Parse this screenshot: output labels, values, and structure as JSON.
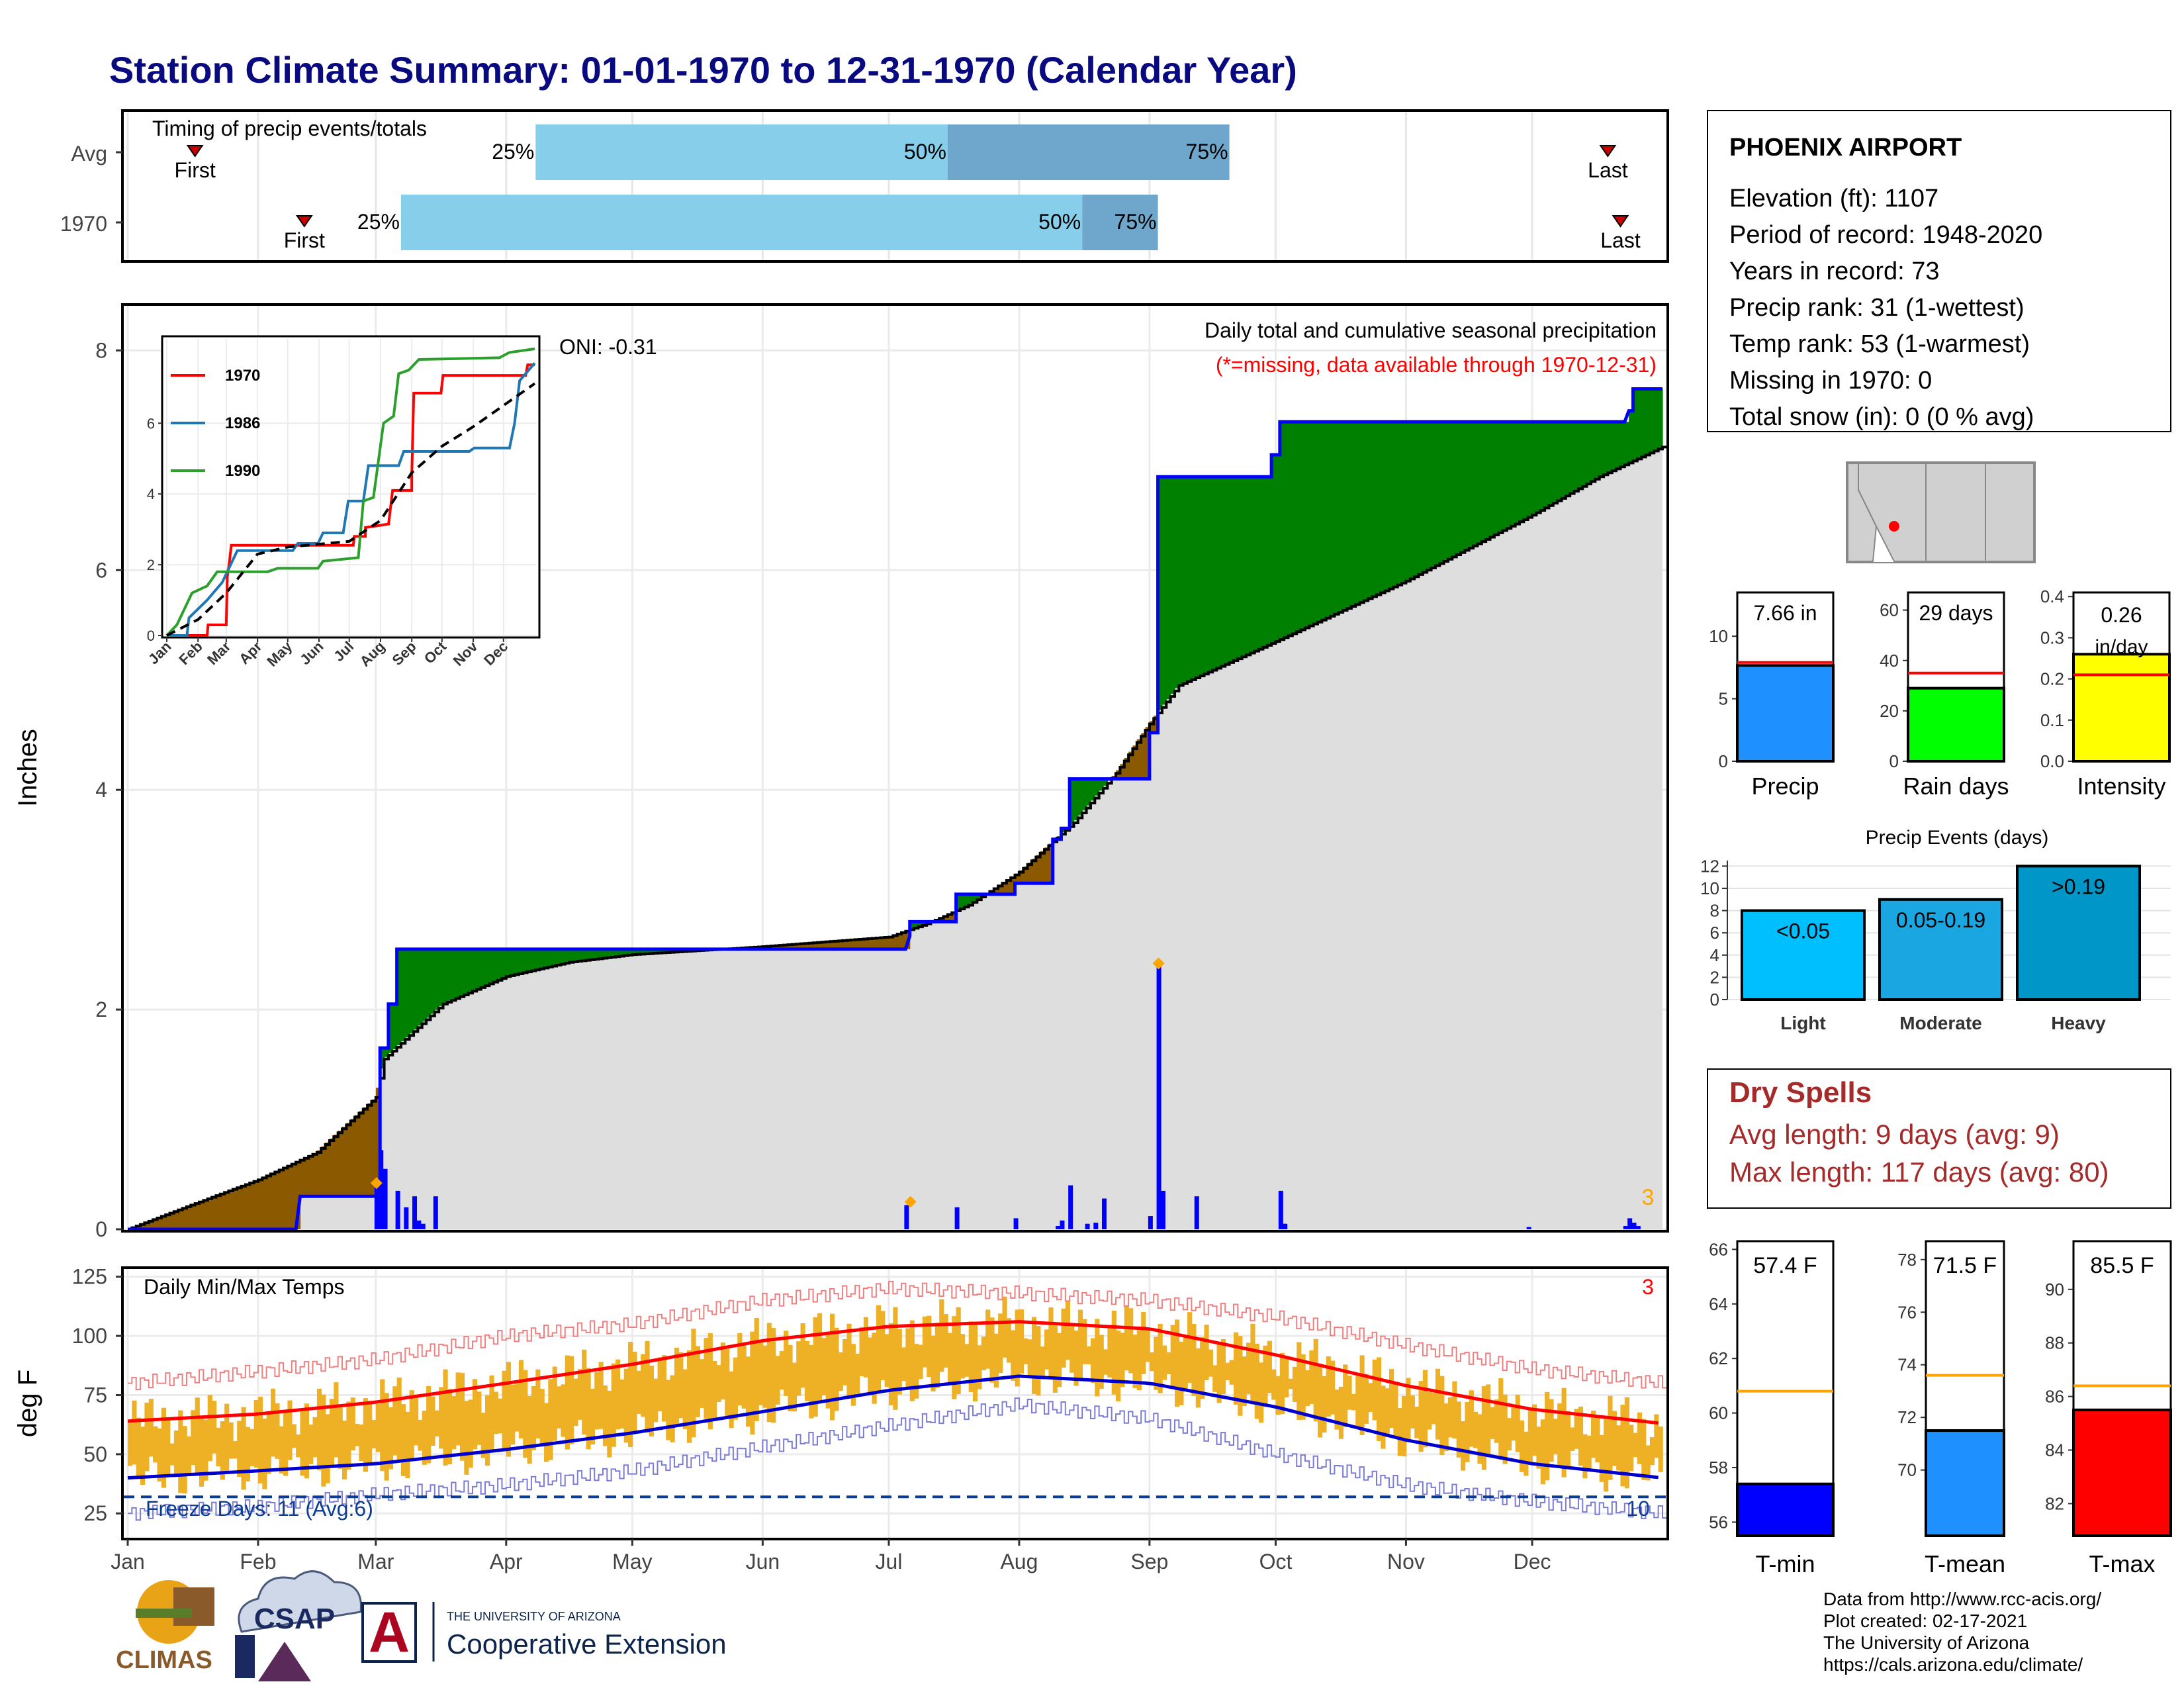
{
  "title": "Station Climate Summary: 01-01-1970 to 12-31-1970 (Calendar Year)",
  "months": [
    "Jan",
    "Feb",
    "Mar",
    "Apr",
    "May",
    "Jun",
    "Jul",
    "Aug",
    "Sep",
    "Oct",
    "Nov",
    "Dec"
  ],
  "colors": {
    "title": "#0a0a80",
    "quartile_light": "#87ceeb",
    "quartile_dark": "#6fa6cc",
    "surplus": "#008000",
    "deficit": "#8b5a00",
    "normal_fill": "#dedede",
    "cumulative_line": "#0000ff",
    "daily_bar": "#0000ff",
    "marker": "#ffa500",
    "temp_band": "#eeb024",
    "tmax_avg": "#ff0000",
    "tmin_avg": "#0000cc",
    "dry_spell": "#a52a2a",
    "oni": "#000000"
  },
  "timing_panel": {
    "label": "Timing of precip events/totals",
    "rows": [
      {
        "name": "Avg",
        "first": 16,
        "q25": 97,
        "q50": 195,
        "q75": 262,
        "last": 352,
        "first_label": "First",
        "last_label": "Last",
        "q25_label": "25%",
        "q50_label": "50%",
        "q75_label": "75%"
      },
      {
        "name": "1970",
        "first": 42,
        "q25": 65,
        "q50": 227,
        "q75": 245,
        "last": 355,
        "first_label": "First",
        "last_label": "Last",
        "q25_label": "25%",
        "q50_label": "50%",
        "q75_label": "75%"
      }
    ]
  },
  "precip_panel": {
    "ylabel": "Inches",
    "ylim": [
      0,
      8.4
    ],
    "yticks": [
      0,
      2,
      4,
      6,
      8
    ],
    "legend_title": "Daily total and cumulative seasonal precipitation",
    "missing_note": "(*=missing, data available through 1970-12-31)",
    "oni_label": "ONI: -0.31",
    "corner_count": "3",
    "chart_data": {
      "type": "area",
      "x_unit": "day of year",
      "cumulative_1970": [
        [
          0,
          0
        ],
        [
          40,
          0
        ],
        [
          41,
          0.3
        ],
        [
          59,
          0.3
        ],
        [
          60,
          0.42
        ],
        [
          60,
          1.65
        ],
        [
          62,
          1.65
        ],
        [
          62,
          2.05
        ],
        [
          64,
          2.05
        ],
        [
          64,
          2.55
        ],
        [
          185,
          2.55
        ],
        [
          186,
          2.67
        ],
        [
          186,
          2.8
        ],
        [
          197,
          2.8
        ],
        [
          197,
          3.05
        ],
        [
          211,
          3.05
        ],
        [
          211,
          3.15
        ],
        [
          220,
          3.15
        ],
        [
          220,
          3.55
        ],
        [
          222,
          3.55
        ],
        [
          222,
          3.65
        ],
        [
          224,
          3.65
        ],
        [
          224,
          4.1
        ],
        [
          243,
          4.1
        ],
        [
          243,
          4.52
        ],
        [
          245,
          4.52
        ],
        [
          245,
          6.85
        ],
        [
          272,
          6.85
        ],
        [
          272,
          7.05
        ],
        [
          274,
          7.05
        ],
        [
          274,
          7.35
        ],
        [
          356,
          7.35
        ],
        [
          357,
          7.45
        ],
        [
          358,
          7.45
        ],
        [
          358,
          7.65
        ],
        [
          365,
          7.65
        ]
      ],
      "cumulative_normal": [
        [
          0,
          0
        ],
        [
          15,
          0.22
        ],
        [
          31,
          0.45
        ],
        [
          45,
          0.7
        ],
        [
          59,
          1.2
        ],
        [
          61,
          1.55
        ],
        [
          75,
          2.05
        ],
        [
          90,
          2.3
        ],
        [
          105,
          2.43
        ],
        [
          120,
          2.5
        ],
        [
          150,
          2.57
        ],
        [
          181,
          2.66
        ],
        [
          190,
          2.78
        ],
        [
          200,
          2.95
        ],
        [
          212,
          3.25
        ],
        [
          225,
          3.7
        ],
        [
          235,
          4.15
        ],
        [
          243,
          4.6
        ],
        [
          250,
          4.95
        ],
        [
          273,
          5.35
        ],
        [
          304,
          5.9
        ],
        [
          334,
          6.5
        ],
        [
          350,
          6.85
        ],
        [
          365,
          7.12
        ]
      ],
      "daily": [
        [
          59,
          0.42
        ],
        [
          60,
          0.72
        ],
        [
          61,
          0.55
        ],
        [
          64,
          0.35
        ],
        [
          66,
          0.2
        ],
        [
          68,
          0.3
        ],
        [
          69,
          0.08
        ],
        [
          70,
          0.05
        ],
        [
          73,
          0.3
        ],
        [
          185,
          0.22
        ],
        [
          197,
          0.2
        ],
        [
          211,
          0.1
        ],
        [
          221,
          0.03
        ],
        [
          222,
          0.08
        ],
        [
          224,
          0.4
        ],
        [
          228,
          0.05
        ],
        [
          230,
          0.06
        ],
        [
          232,
          0.28
        ],
        [
          243,
          0.12
        ],
        [
          245,
          2.45
        ],
        [
          246,
          0.35
        ],
        [
          254,
          0.3
        ],
        [
          274,
          0.35
        ],
        [
          275,
          0.05
        ],
        [
          333,
          0.02
        ],
        [
          356,
          0.03
        ],
        [
          357,
          0.1
        ],
        [
          358,
          0.06
        ],
        [
          359,
          0.03
        ]
      ],
      "markers": [
        [
          59,
          0.42
        ],
        [
          186,
          0.25
        ],
        [
          245,
          2.42
        ]
      ]
    }
  },
  "inset": {
    "legend": [
      {
        "name": "1970",
        "color": "#ff0000"
      },
      {
        "name": "1986",
        "color": "#1f77b4"
      },
      {
        "name": "1990",
        "color": "#2ca02c"
      }
    ],
    "ylim": [
      0,
      8.4
    ],
    "yticks": [
      0,
      2,
      4,
      6
    ],
    "xticks": [
      "Jan",
      "Feb",
      "Mar",
      "Apr",
      "May",
      "Jun",
      "Jul",
      "Aug",
      "Sep",
      "Oct",
      "Nov",
      "Dec"
    ],
    "chart_data": {
      "type": "line",
      "series": [
        {
          "name": "1970",
          "color": "#ff0000",
          "points": [
            [
              0,
              0
            ],
            [
              40,
              0
            ],
            [
              41,
              0.3
            ],
            [
              59,
              0.3
            ],
            [
              60,
              1.65
            ],
            [
              62,
              2.05
            ],
            [
              64,
              2.55
            ],
            [
              185,
              2.55
            ],
            [
              186,
              2.8
            ],
            [
              197,
              2.8
            ],
            [
              197,
              3.05
            ],
            [
              220,
              3.15
            ],
            [
              224,
              4.1
            ],
            [
              243,
              4.1
            ],
            [
              243,
              4.52
            ],
            [
              245,
              6.85
            ],
            [
              272,
              6.85
            ],
            [
              274,
              7.35
            ],
            [
              356,
              7.35
            ],
            [
              358,
              7.65
            ],
            [
              365,
              7.65
            ]
          ]
        },
        {
          "name": "1986",
          "color": "#1f77b4",
          "points": [
            [
              0,
              0
            ],
            [
              20,
              0
            ],
            [
              22,
              0.5
            ],
            [
              40,
              1.0
            ],
            [
              55,
              1.5
            ],
            [
              70,
              2.4
            ],
            [
              125,
              2.4
            ],
            [
              130,
              2.6
            ],
            [
              150,
              2.6
            ],
            [
              155,
              2.9
            ],
            [
              175,
              2.9
            ],
            [
              180,
              3.8
            ],
            [
              195,
              3.8
            ],
            [
              200,
              4.8
            ],
            [
              230,
              4.8
            ],
            [
              235,
              5.2
            ],
            [
              300,
              5.2
            ],
            [
              305,
              5.3
            ],
            [
              340,
              5.3
            ],
            [
              345,
              6.0
            ],
            [
              350,
              7.2
            ],
            [
              365,
              7.7
            ]
          ]
        },
        {
          "name": "1990",
          "color": "#2ca02c",
          "points": [
            [
              0,
              0
            ],
            [
              10,
              0.3
            ],
            [
              25,
              1.2
            ],
            [
              40,
              1.4
            ],
            [
              50,
              1.8
            ],
            [
              100,
              1.8
            ],
            [
              110,
              1.9
            ],
            [
              150,
              1.9
            ],
            [
              155,
              2.1
            ],
            [
              190,
              2.2
            ],
            [
              195,
              3.8
            ],
            [
              205,
              3.9
            ],
            [
              215,
              6.0
            ],
            [
              225,
              6.2
            ],
            [
              230,
              7.4
            ],
            [
              240,
              7.5
            ],
            [
              250,
              7.8
            ],
            [
              330,
              7.85
            ],
            [
              340,
              8.0
            ],
            [
              365,
              8.1
            ]
          ]
        },
        {
          "name": "normal",
          "color": "#000000",
          "dashed": true,
          "points": [
            [
              0,
              0
            ],
            [
              31,
              0.45
            ],
            [
              59,
              1.2
            ],
            [
              90,
              2.3
            ],
            [
              120,
              2.5
            ],
            [
              181,
              2.66
            ],
            [
              212,
              3.25
            ],
            [
              243,
              4.6
            ],
            [
              273,
              5.35
            ],
            [
              304,
              5.9
            ],
            [
              334,
              6.5
            ],
            [
              365,
              7.12
            ]
          ]
        }
      ]
    }
  },
  "temp_panel": {
    "ylabel": "deg F",
    "ylim": [
      15,
      128
    ],
    "yticks": [
      25,
      50,
      75,
      100,
      125
    ],
    "label": "Daily Min/Max Temps",
    "freeze_label": "Freeze Days: 11 (Avg:6)",
    "freeze_line": 32,
    "corner_count_top": "3",
    "corner_count_bottom": "10",
    "chart_data": {
      "type": "area",
      "avg_tmax": [
        [
          0,
          64
        ],
        [
          31,
          67
        ],
        [
          59,
          72
        ],
        [
          90,
          80
        ],
        [
          120,
          88
        ],
        [
          151,
          98
        ],
        [
          181,
          104
        ],
        [
          212,
          106
        ],
        [
          243,
          103
        ],
        [
          273,
          92
        ],
        [
          304,
          79
        ],
        [
          334,
          69
        ],
        [
          365,
          63
        ]
      ],
      "avg_tmin": [
        [
          0,
          40
        ],
        [
          31,
          43
        ],
        [
          59,
          46
        ],
        [
          90,
          52
        ],
        [
          120,
          59
        ],
        [
          151,
          68
        ],
        [
          181,
          77
        ],
        [
          212,
          83
        ],
        [
          243,
          80
        ],
        [
          273,
          70
        ],
        [
          304,
          56
        ],
        [
          334,
          46
        ],
        [
          365,
          40
        ]
      ],
      "rec_max": [
        [
          0,
          80
        ],
        [
          31,
          85
        ],
        [
          59,
          90
        ],
        [
          90,
          100
        ],
        [
          120,
          105
        ],
        [
          151,
          115
        ],
        [
          181,
          120
        ],
        [
          212,
          118
        ],
        [
          243,
          115
        ],
        [
          273,
          108
        ],
        [
          304,
          96
        ],
        [
          334,
          86
        ],
        [
          365,
          80
        ]
      ],
      "rec_min": [
        [
          0,
          25
        ],
        [
          31,
          28
        ],
        [
          59,
          33
        ],
        [
          90,
          37
        ],
        [
          120,
          43
        ],
        [
          151,
          53
        ],
        [
          181,
          62
        ],
        [
          212,
          71
        ],
        [
          243,
          65
        ],
        [
          273,
          50
        ],
        [
          304,
          37
        ],
        [
          334,
          30
        ],
        [
          365,
          25
        ]
      ]
    }
  },
  "station": {
    "name": "PHOENIX AIRPORT",
    "lines": [
      "Elevation (ft): 1107",
      "Period of record: 1948-2020",
      "Years in record: 73",
      "Precip rank: 31 (1-wettest)",
      "Temp rank: 53 (1-warmest)",
      "Missing in 1970: 0",
      "Total snow (in): 0 (0 % avg)"
    ]
  },
  "mini_bars": [
    {
      "label": "Precip",
      "value_label": "7.66 in",
      "value": 7.66,
      "avg": 7.9,
      "ylim": [
        0,
        13.5
      ],
      "yticks": [
        0,
        5,
        10
      ],
      "color": "#1e90ff"
    },
    {
      "label": "Rain days",
      "value_label": "29 days",
      "value": 29,
      "avg": 35,
      "ylim": [
        0,
        67
      ],
      "yticks": [
        0,
        20,
        40,
        60
      ],
      "color": "#00ff00"
    },
    {
      "label": "Intensity",
      "value_label": "0.26 in/day",
      "value": 0.26,
      "avg": 0.21,
      "ylim": [
        0,
        0.41
      ],
      "yticks": [
        0.0,
        0.1,
        0.2,
        0.3,
        0.4
      ],
      "color": "#ffff00"
    }
  ],
  "precip_events": {
    "title": "Precip Events (days)",
    "ylim": [
      0,
      12.5
    ],
    "yticks": [
      0,
      2,
      4,
      6,
      8,
      10,
      12
    ],
    "chart_data": {
      "type": "bar",
      "categories": [
        "Light",
        "Moderate",
        "Heavy"
      ],
      "bar_labels": [
        "<0.05",
        "0.05-0.19",
        ">0.19"
      ],
      "values": [
        8,
        9,
        12
      ],
      "colors": [
        "#00bfff",
        "#1aa6e0",
        "#0096c8"
      ]
    }
  },
  "dry_spells": {
    "title": "Dry Spells",
    "avg_line": "Avg length: 9 days (avg: 9)",
    "max_line": "Max length: 117 days (avg: 80)"
  },
  "temp_bars": [
    {
      "label": "T-min",
      "value_label": "57.4 F",
      "value": 57.4,
      "avg": 60.8,
      "ylim": [
        55.5,
        66.3
      ],
      "yticks": [
        56,
        58,
        60,
        62,
        64,
        66
      ],
      "color": "#0000ff"
    },
    {
      "label": "T-mean",
      "value_label": "71.5 F",
      "value": 71.5,
      "avg": 73.6,
      "ylim": [
        67.5,
        78.7
      ],
      "yticks": [
        70,
        72,
        74,
        76,
        78
      ],
      "color": "#1e90ff"
    },
    {
      "label": "T-max",
      "value_label": "85.5 F",
      "value": 85.5,
      "avg": 86.4,
      "ylim": [
        80.8,
        91.8
      ],
      "yticks": [
        82,
        84,
        86,
        88,
        90
      ],
      "color": "#ff0000"
    }
  ],
  "footer": {
    "lines": [
      "Data from http://www.rcc-acis.org/",
      "Plot created: 02-17-2021",
      "The University of Arizona",
      "https://cals.arizona.edu/climate/"
    ],
    "logo_climas": "CLIMAS",
    "logo_csap": "CSAP",
    "logo_ua_small": "THE UNIVERSITY OF ARIZONA",
    "logo_ua_big": "Cooperative Extension",
    "logo_ua_letter": "A"
  }
}
